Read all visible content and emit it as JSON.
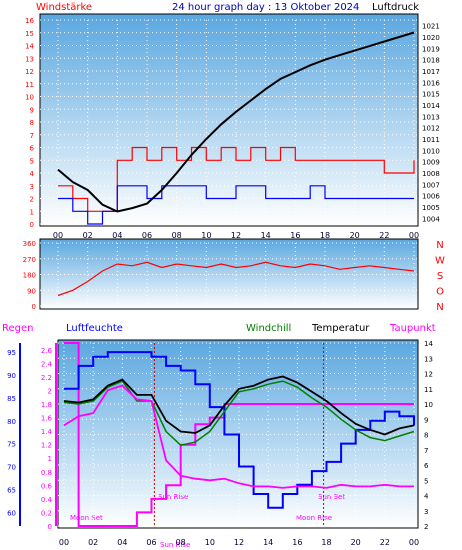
{
  "header": {
    "left_label": "Windstärke",
    "title": "24 hour graph day : 13 Oktober 2024",
    "right_label": "Luftdruck"
  },
  "colors": {
    "wind": "#ff0000",
    "gust": "#0000ff",
    "pressure": "#000000",
    "humidity": "#0000ff",
    "windchill": "#008000",
    "temperature": "#000000",
    "dewpoint": "#ff00ff",
    "rain": "#ff00ff",
    "sky_top": "#5aa7e0",
    "sky_bottom": "#ffffff"
  },
  "chart_data": [
    {
      "type": "line",
      "id": "wind_pressure",
      "left_axis_ticks": [
        "16",
        "15",
        "14",
        "13",
        "12",
        "11",
        "10",
        "9",
        "8",
        "7",
        "6",
        "5",
        "4",
        "3",
        "2",
        "1",
        "0"
      ],
      "right_axis_ticks": [
        "1021",
        "1020",
        "1019",
        "1018",
        "1017",
        "1016",
        "1015",
        "1014",
        "1013",
        "1012",
        "1011",
        "1010",
        "1009",
        "1008",
        "1007",
        "1006",
        "1005",
        "1004"
      ],
      "x_ticks": [
        "00",
        "02",
        "04",
        "06",
        "08",
        "10",
        "12",
        "14",
        "16",
        "18",
        "20",
        "22",
        "00"
      ],
      "ylim_left": [
        0,
        16
      ],
      "ylim_right": [
        1003.5,
        1021.5
      ],
      "x": [
        0,
        1,
        2,
        3,
        4,
        5,
        6,
        7,
        8,
        9,
        10,
        11,
        12,
        13,
        14,
        15,
        16,
        17,
        18,
        19,
        20,
        21,
        22,
        23,
        24
      ],
      "series": [
        {
          "label": "Windstärke",
          "values": [
            3,
            2,
            1,
            1,
            5,
            6,
            5,
            6,
            5,
            6,
            5,
            6,
            5,
            6,
            5,
            6,
            5,
            5,
            5,
            5,
            5,
            5,
            4,
            4,
            5
          ]
        },
        {
          "label": "Böen",
          "values": [
            2,
            1,
            0,
            1,
            3,
            3,
            2,
            3,
            3,
            3,
            2,
            2,
            3,
            3,
            2,
            2,
            2,
            3,
            2,
            2,
            2,
            2,
            2,
            2,
            2
          ]
        },
        {
          "label": "Luftdruck",
          "values": [
            1008.3,
            1007.2,
            1006.5,
            1005.2,
            1004.6,
            1004.9,
            1005.3,
            1006.5,
            1008.0,
            1009.6,
            1011.0,
            1012.3,
            1013.4,
            1014.4,
            1015.4,
            1016.3,
            1016.9,
            1017.5,
            1018.0,
            1018.4,
            1018.8,
            1019.2,
            1019.6,
            1020.0,
            1020.4
          ]
        }
      ]
    },
    {
      "type": "scatter",
      "id": "wind_direction",
      "left_axis_ticks": [
        "360",
        "270",
        "180",
        "90",
        "0"
      ],
      "right_axis_labels": [
        "N",
        "W",
        "S",
        "O",
        "N"
      ],
      "ylim": [
        0,
        360
      ],
      "x": [
        0,
        1,
        2,
        3,
        4,
        5,
        6,
        7,
        8,
        9,
        10,
        11,
        12,
        13,
        14,
        15,
        16,
        17,
        18,
        19,
        20,
        21,
        22,
        23,
        24
      ],
      "series": [
        {
          "label": "Windrichtung",
          "values": [
            60,
            90,
            140,
            200,
            240,
            230,
            250,
            220,
            240,
            230,
            220,
            240,
            220,
            230,
            250,
            230,
            220,
            240,
            230,
            210,
            220,
            230,
            220,
            210,
            200
          ]
        }
      ]
    },
    {
      "type": "line",
      "id": "temp_humidity",
      "legend": [
        "Regen",
        "Luftfeuchte",
        "Windchill",
        "Temperatur",
        "Taupunkt"
      ],
      "rain_axis_ticks": [
        "2.6",
        "2.4",
        "2.2",
        "2",
        "1.8",
        "1.6",
        "1.4",
        "1.2",
        "1",
        "0.8",
        "0.6",
        "0.4",
        "0.2",
        "0"
      ],
      "humidity_axis_ticks": [
        "95",
        "90",
        "85",
        "80",
        "75",
        "70",
        "65",
        "60"
      ],
      "temperature_axis_ticks": [
        "14",
        "13",
        "12",
        "11",
        "10",
        "9",
        "8",
        "7",
        "6",
        "5",
        "4",
        "3",
        "2"
      ],
      "x_ticks": [
        "00",
        "02",
        "04",
        "06",
        "08",
        "10",
        "12",
        "14",
        "16",
        "18",
        "20",
        "22",
        "00"
      ],
      "ylim_temperature": [
        2,
        14
      ],
      "ylim_humidity": [
        57,
        97
      ],
      "ylim_rain": [
        0,
        2.7
      ],
      "annotations": {
        "moon_set": "Moon Set",
        "sun_rise_label": "Sun Rise",
        "sun_rise_time": "Sun Rise",
        "sun_set": "Sun Set",
        "moon_rise": "Moon Rise"
      },
      "x": [
        0,
        1,
        2,
        3,
        4,
        5,
        6,
        7,
        8,
        9,
        10,
        11,
        12,
        13,
        14,
        15,
        16,
        17,
        18,
        19,
        20,
        21,
        22,
        23,
        24
      ],
      "series": [
        {
          "label": "Luftfeuchte",
          "values": [
            87,
            92,
            94,
            95,
            95,
            95,
            94,
            92,
            91,
            88,
            83,
            77,
            70,
            64,
            61,
            64,
            66,
            69,
            71,
            75,
            78,
            80,
            82,
            81,
            79
          ]
        },
        {
          "label": "Windchill",
          "values": [
            10.1,
            10.0,
            10.2,
            11.1,
            11.5,
            10.2,
            10.2,
            8.2,
            7.3,
            7.5,
            8.2,
            9.5,
            10.8,
            11.0,
            11.3,
            11.5,
            11.1,
            10.4,
            9.8,
            9.0,
            8.3,
            7.8,
            7.6,
            7.9,
            8.2
          ]
        },
        {
          "label": "Temperatur",
          "values": [
            10.2,
            10.1,
            10.3,
            11.2,
            11.6,
            10.6,
            10.6,
            8.9,
            8.2,
            8.1,
            8.6,
            9.9,
            11.0,
            11.2,
            11.6,
            11.8,
            11.4,
            10.8,
            10.2,
            9.4,
            8.7,
            8.3,
            8.0,
            8.4,
            8.6
          ]
        },
        {
          "label": "Taupunkt",
          "values": [
            8.6,
            9.2,
            9.4,
            10.9,
            11.2,
            10.3,
            10.2,
            6.3,
            5.3,
            5.1,
            5.0,
            5.1,
            4.8,
            4.6,
            4.6,
            4.5,
            4.6,
            4.6,
            4.5,
            4.7,
            4.6,
            4.6,
            4.7,
            4.6,
            4.6
          ]
        },
        {
          "label": "Regen",
          "values": [
            2.7,
            0.0,
            0.0,
            0.0,
            0.0,
            0.2,
            0.4,
            0.6,
            1.2,
            1.5,
            1.6,
            1.8,
            1.8,
            1.8,
            1.8,
            1.8,
            1.8,
            1.8,
            1.8,
            1.8,
            1.8,
            1.8,
            1.8,
            1.8,
            1.8
          ]
        }
      ]
    }
  ]
}
